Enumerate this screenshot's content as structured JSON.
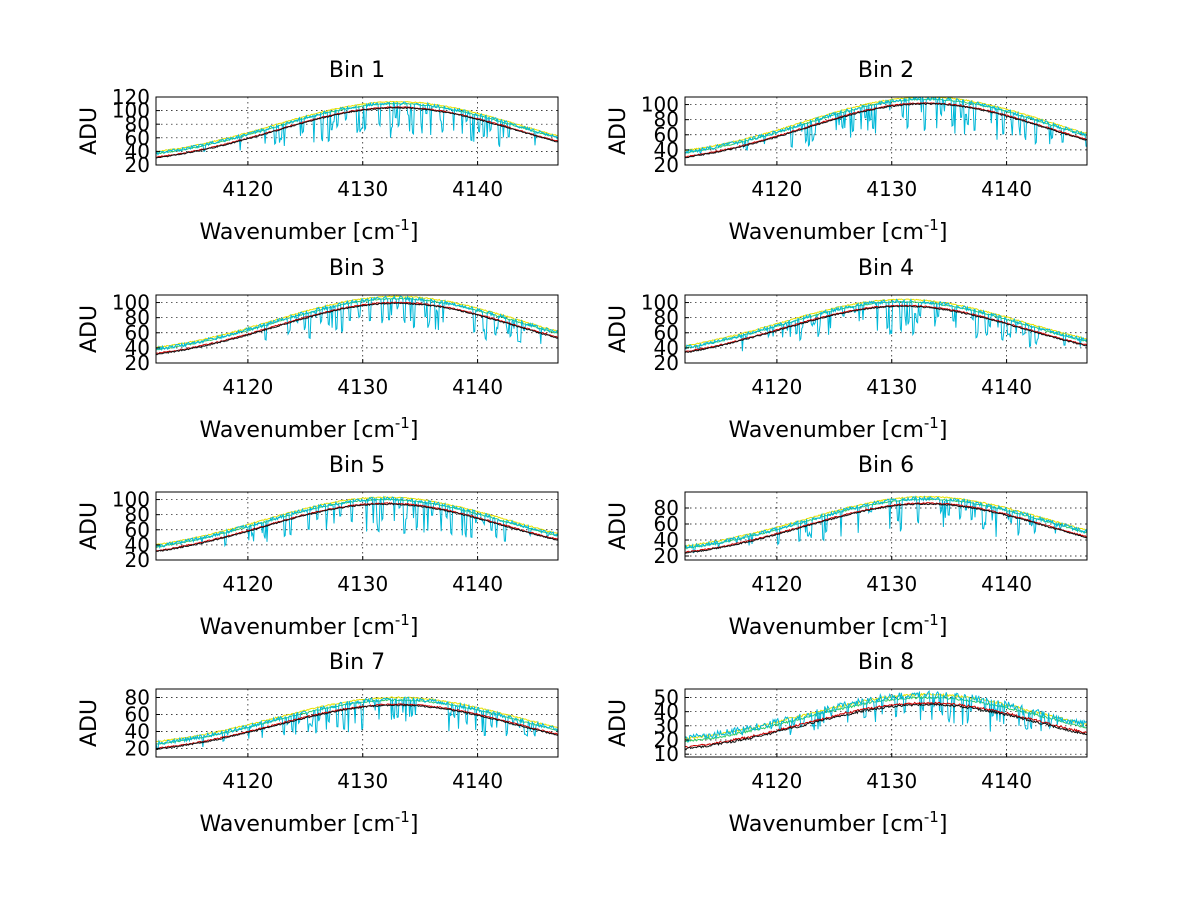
{
  "figure": {
    "background": "#ffffff",
    "series_colors": {
      "yellow": "#e8e000",
      "green": "#33cc66",
      "cyan": "#00b8d8",
      "dark": "#111111",
      "red": "#cc0000"
    }
  },
  "chart_data": [
    {
      "type": "line",
      "title": "Bin 1",
      "xlabel": "Wavenumber [cm",
      "xlabel_sup": "-1",
      "xlabel_suffix": "]",
      "ylabel": "ADU",
      "xlim": [
        4112,
        4147
      ],
      "ylim": [
        20,
        120
      ],
      "xticks": [
        4120,
        4130,
        4140
      ],
      "yticks": [
        20,
        40,
        60,
        80,
        100,
        120
      ],
      "grid": true,
      "peak_center": 4133,
      "peak_value": 105,
      "edge_value": 20,
      "series": [
        {
          "name": "yellow",
          "offset": 8
        },
        {
          "name": "green",
          "offset": 5
        },
        {
          "name": "cyan",
          "absorption": true
        },
        {
          "name": "red",
          "offset": 0
        },
        {
          "name": "dark",
          "offset": -1
        }
      ]
    },
    {
      "type": "line",
      "title": "Bin 2",
      "xlabel": "Wavenumber [cm",
      "xlabel_sup": "-1",
      "xlabel_suffix": "]",
      "ylabel": "ADU",
      "xlim": [
        4112,
        4147
      ],
      "ylim": [
        20,
        110
      ],
      "xticks": [
        4120,
        4130,
        4140
      ],
      "yticks": [
        20,
        40,
        60,
        80,
        100
      ],
      "grid": true,
      "peak_center": 4133,
      "peak_value": 102,
      "edge_value": 20,
      "series": [
        {
          "name": "yellow",
          "offset": 8
        },
        {
          "name": "green",
          "offset": 5
        },
        {
          "name": "cyan",
          "absorption": true
        },
        {
          "name": "red",
          "offset": 0
        },
        {
          "name": "dark",
          "offset": -1
        }
      ]
    },
    {
      "type": "line",
      "title": "Bin 3",
      "xlabel": "Wavenumber [cm",
      "xlabel_sup": "-1",
      "xlabel_suffix": "]",
      "ylabel": "ADU",
      "xlim": [
        4112,
        4147
      ],
      "ylim": [
        20,
        110
      ],
      "xticks": [
        4120,
        4130,
        4140
      ],
      "yticks": [
        20,
        40,
        60,
        80,
        100
      ],
      "grid": true,
      "peak_center": 4133,
      "peak_value": 100,
      "edge_value": 22,
      "series": [
        {
          "name": "yellow",
          "offset": 8
        },
        {
          "name": "green",
          "offset": 5
        },
        {
          "name": "cyan",
          "absorption": true
        },
        {
          "name": "red",
          "offset": 0
        },
        {
          "name": "dark",
          "offset": -1
        }
      ]
    },
    {
      "type": "line",
      "title": "Bin 4",
      "xlabel": "Wavenumber [cm",
      "xlabel_sup": "-1",
      "xlabel_suffix": "]",
      "ylabel": "ADU",
      "xlim": [
        4112,
        4147
      ],
      "ylim": [
        20,
        110
      ],
      "xticks": [
        4120,
        4130,
        4140
      ],
      "yticks": [
        20,
        40,
        60,
        80,
        100
      ],
      "grid": true,
      "peak_center": 4131,
      "peak_value": 96,
      "edge_value": 20,
      "series": [
        {
          "name": "yellow",
          "offset": 8
        },
        {
          "name": "green",
          "offset": 5
        },
        {
          "name": "cyan",
          "absorption": true
        },
        {
          "name": "red",
          "offset": 0
        },
        {
          "name": "dark",
          "offset": -1
        }
      ]
    },
    {
      "type": "line",
      "title": "Bin 5",
      "xlabel": "Wavenumber [cm",
      "xlabel_sup": "-1",
      "xlabel_suffix": "]",
      "ylabel": "ADU",
      "xlim": [
        4112,
        4147
      ],
      "ylim": [
        20,
        110
      ],
      "xticks": [
        4120,
        4130,
        4140
      ],
      "yticks": [
        20,
        40,
        60,
        80,
        100
      ],
      "grid": true,
      "peak_center": 4132,
      "peak_value": 95,
      "edge_value": 20,
      "series": [
        {
          "name": "yellow",
          "offset": 8
        },
        {
          "name": "green",
          "offset": 5
        },
        {
          "name": "cyan",
          "absorption": true
        },
        {
          "name": "red",
          "offset": 0
        },
        {
          "name": "dark",
          "offset": -1
        }
      ]
    },
    {
      "type": "line",
      "title": "Bin 6",
      "xlabel": "Wavenumber [cm",
      "xlabel_sup": "-1",
      "xlabel_suffix": "]",
      "ylabel": "ADU",
      "xlim": [
        4112,
        4147
      ],
      "ylim": [
        15,
        100
      ],
      "xticks": [
        4120,
        4130,
        4140
      ],
      "yticks": [
        20,
        40,
        60,
        80
      ],
      "grid": true,
      "peak_center": 4133,
      "peak_value": 86,
      "edge_value": 15,
      "series": [
        {
          "name": "yellow",
          "offset": 8
        },
        {
          "name": "green",
          "offset": 5
        },
        {
          "name": "cyan",
          "absorption": true
        },
        {
          "name": "red",
          "offset": 0
        },
        {
          "name": "dark",
          "offset": -1
        }
      ]
    },
    {
      "type": "line",
      "title": "Bin 7",
      "xlabel": "Wavenumber [cm",
      "xlabel_sup": "-1",
      "xlabel_suffix": "]",
      "ylabel": "ADU",
      "xlim": [
        4112,
        4147
      ],
      "ylim": [
        10,
        90
      ],
      "xticks": [
        4120,
        4130,
        4140
      ],
      "yticks": [
        20,
        40,
        60,
        80
      ],
      "grid": true,
      "peak_center": 4133,
      "peak_value": 72,
      "edge_value": 12,
      "series": [
        {
          "name": "yellow",
          "offset": 8
        },
        {
          "name": "green",
          "offset": 5
        },
        {
          "name": "cyan",
          "absorption": true
        },
        {
          "name": "red",
          "offset": 0
        },
        {
          "name": "dark",
          "offset": -1
        }
      ]
    },
    {
      "type": "line",
      "title": "Bin 8",
      "xlabel": "Wavenumber [cm",
      "xlabel_sup": "-1",
      "xlabel_suffix": "]",
      "ylabel": "ADU",
      "xlim": [
        4112,
        4147
      ],
      "ylim": [
        8,
        56
      ],
      "xticks": [
        4120,
        4130,
        4140
      ],
      "yticks": [
        10,
        20,
        30,
        40,
        50
      ],
      "grid": true,
      "peak_center": 4133,
      "peak_value": 46,
      "edge_value": 10,
      "series": [
        {
          "name": "yellow",
          "offset": 6
        },
        {
          "name": "green",
          "offset": 4
        },
        {
          "name": "cyan",
          "absorption": true
        },
        {
          "name": "red",
          "offset": 0
        },
        {
          "name": "dark",
          "offset": -1
        }
      ]
    }
  ]
}
